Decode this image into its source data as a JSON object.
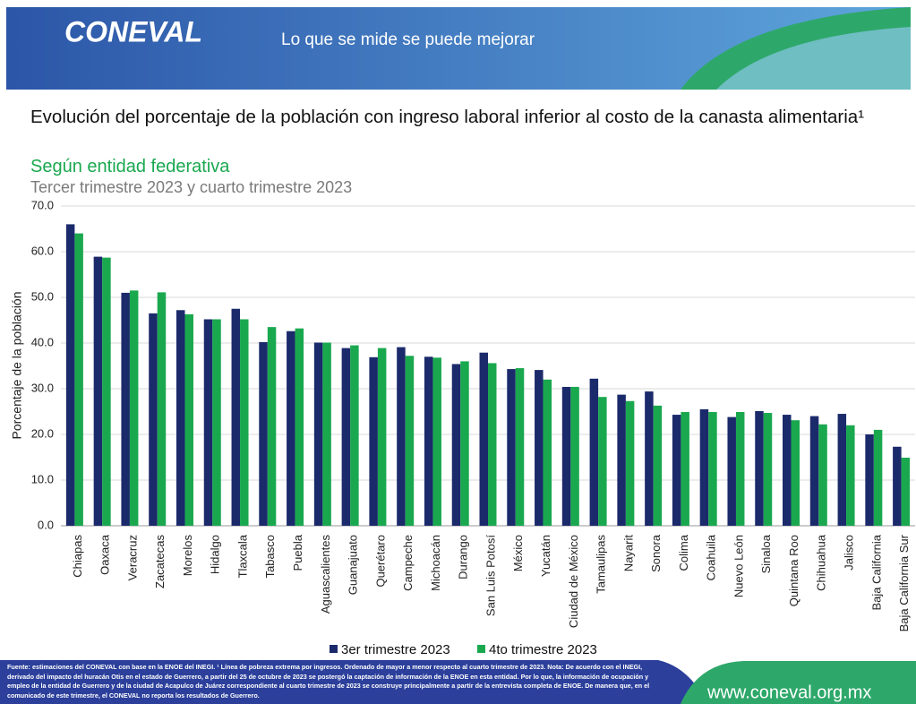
{
  "header": {
    "logo": "CONEVAL",
    "tagline": "Lo que se mide se puede mejorar"
  },
  "footer": {
    "note": "Fuente: estimaciones del CONEVAL con base en la ENOE del INEGI. ¹ Línea de pobreza extrema por ingresos. Ordenado de mayor a menor respecto al cuarto trimestre de 2023. Nota: De acuerdo con el INEGI, derivado del impacto del huracán Otis en el estado de Guerrero, a partir del 25 de octubre de 2023 se postergó la captación de información de la ENOE en esta entidad. Por lo que, la información de ocupación y empleo de la entidad de Guerrero y de la ciudad de Acapulco de Juárez correspondiente al cuarto trimestre de 2023 se construye principalmente a partir de la entrevista completa de ENOE. De manera que, en el comunicado de este trimestre, el CONEVAL no reporta los resultados de Guerrero.",
    "url": "www.coneval.org.mx"
  },
  "chart_data": {
    "type": "bar",
    "title": "Evolución del porcentaje de la población con ingreso laboral inferior al costo de la canasta alimentaria¹",
    "subtitle": "Según entidad federativa",
    "period": "Tercer trimestre 2023 y cuarto trimestre 2023",
    "ylabel": "Porcentaje de la población",
    "categories": [
      "Chiapas",
      "Oaxaca",
      "Veracruz",
      "Zacatecas",
      "Morelos",
      "Hidalgo",
      "Tlaxcala",
      "Tabasco",
      "Puebla",
      "Aguascalientes",
      "Guanajuato",
      "Querétaro",
      "Campeche",
      "Michoacán",
      "Durango",
      "San Luis Potosí",
      "México",
      "Yucatán",
      "Ciudad de México",
      "Tamaulipas",
      "Nayarit",
      "Sonora",
      "Colima",
      "Coahuila",
      "Nuevo León",
      "Sinaloa",
      "Quintana Roo",
      "Chihuahua",
      "Jalisco",
      "Baja California",
      "Baja California Sur"
    ],
    "series": [
      {
        "name": "3er trimestre 2023",
        "color": "#1b2a6b",
        "values": [
          66.0,
          58.9,
          51.0,
          46.5,
          47.2,
          45.2,
          47.5,
          40.2,
          42.6,
          40.1,
          38.9,
          36.9,
          39.1,
          37.0,
          35.4,
          37.9,
          34.3,
          34.1,
          30.4,
          32.2,
          28.7,
          29.4,
          24.3,
          25.5,
          23.8,
          25.1,
          24.3,
          24.0,
          24.5,
          20.0,
          17.3
        ]
      },
      {
        "name": "4to trimestre 2023",
        "color": "#1aa84f",
        "values": [
          64.0,
          58.7,
          51.5,
          51.1,
          46.3,
          45.2,
          45.2,
          43.5,
          43.2,
          40.1,
          39.5,
          38.9,
          37.2,
          36.8,
          36.0,
          35.6,
          34.5,
          32.0,
          30.4,
          28.2,
          27.3,
          26.3,
          24.9,
          24.9,
          24.9,
          24.7,
          23.1,
          22.2,
          22.0,
          21.0,
          14.9
        ]
      }
    ],
    "ylim": [
      0,
      70
    ],
    "yticks": [
      {
        "value": 0,
        "label": "0.0"
      },
      {
        "value": 10,
        "label": "10.0"
      },
      {
        "value": 20,
        "label": "20.0"
      },
      {
        "value": 30,
        "label": "30.0"
      },
      {
        "value": 40,
        "label": "40.0"
      },
      {
        "value": 50,
        "label": "50.0"
      },
      {
        "value": 60,
        "label": "60.0"
      },
      {
        "value": 70,
        "label": "70.0"
      }
    ],
    "grid": true,
    "legend": "bottom"
  }
}
